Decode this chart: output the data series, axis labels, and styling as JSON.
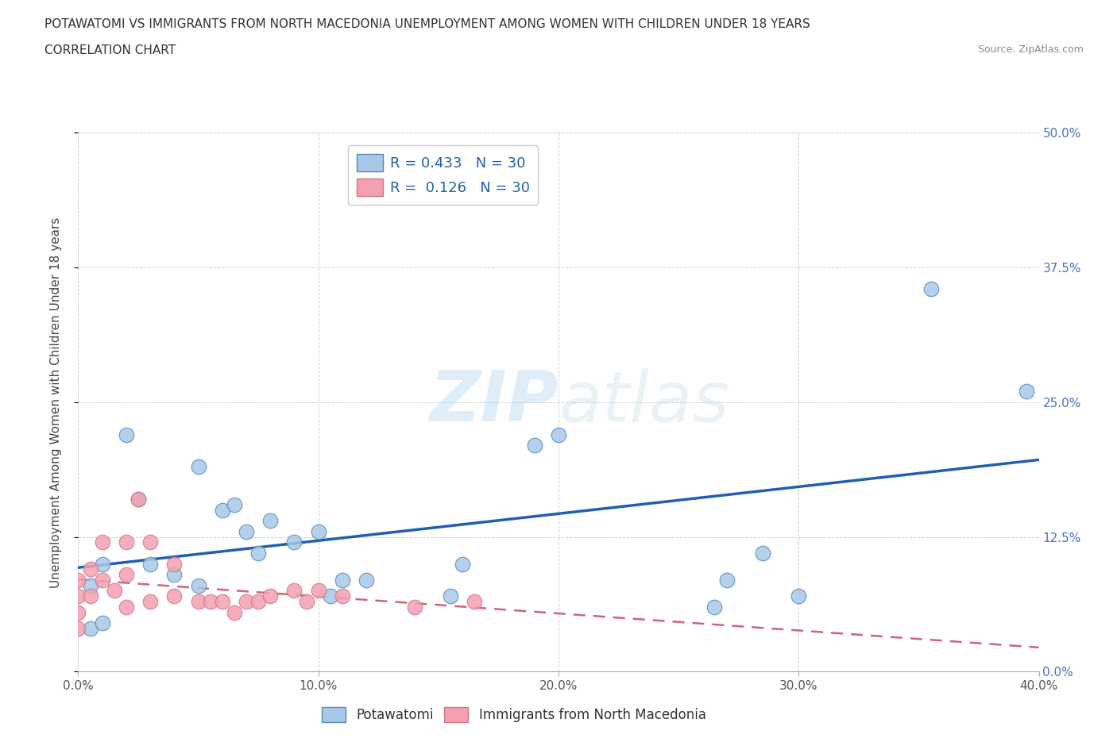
{
  "title_line1": "POTAWATOMI VS IMMIGRANTS FROM NORTH MACEDONIA UNEMPLOYMENT AMONG WOMEN WITH CHILDREN UNDER 18 YEARS",
  "title_line2": "CORRELATION CHART",
  "source": "Source: ZipAtlas.com",
  "ylabel": "Unemployment Among Women with Children Under 18 years",
  "xlim": [
    0.0,
    0.4
  ],
  "ylim": [
    0.0,
    0.5
  ],
  "xtick_vals": [
    0.0,
    0.1,
    0.2,
    0.3,
    0.4
  ],
  "xtick_labels": [
    "0.0%",
    "10.0%",
    "20.0%",
    "30.0%",
    "40.0%"
  ],
  "ytick_vals": [
    0.0,
    0.125,
    0.25,
    0.375,
    0.5
  ],
  "ytick_labels": [
    "0.0%",
    "12.5%",
    "25.0%",
    "37.5%",
    "50.0%"
  ],
  "watermark": "ZIPatlas",
  "blue_color": "#a8c8e8",
  "blue_edge_color": "#5588bb",
  "pink_color": "#f4a0b0",
  "pink_edge_color": "#cc7788",
  "blue_line_color": "#2060b0",
  "pink_line_color": "#cc6677",
  "legend_label1": "R = 0.433   N = 30",
  "legend_label2": "R =  0.126   N = 30",
  "potawatomi_x": [
    0.005,
    0.005,
    0.01,
    0.01,
    0.02,
    0.025,
    0.03,
    0.04,
    0.05,
    0.05,
    0.06,
    0.065,
    0.07,
    0.075,
    0.08,
    0.09,
    0.1,
    0.105,
    0.11,
    0.12,
    0.155,
    0.16,
    0.19,
    0.2,
    0.265,
    0.27,
    0.285,
    0.3,
    0.355,
    0.395
  ],
  "potawatomi_y": [
    0.08,
    0.04,
    0.1,
    0.045,
    0.22,
    0.16,
    0.1,
    0.09,
    0.19,
    0.08,
    0.15,
    0.155,
    0.13,
    0.11,
    0.14,
    0.12,
    0.13,
    0.07,
    0.085,
    0.085,
    0.07,
    0.1,
    0.21,
    0.22,
    0.06,
    0.085,
    0.11,
    0.07,
    0.355,
    0.26
  ],
  "macedonia_x": [
    0.0,
    0.0,
    0.0,
    0.0,
    0.005,
    0.005,
    0.01,
    0.01,
    0.015,
    0.02,
    0.02,
    0.02,
    0.025,
    0.03,
    0.03,
    0.04,
    0.04,
    0.05,
    0.055,
    0.06,
    0.065,
    0.07,
    0.075,
    0.08,
    0.09,
    0.095,
    0.1,
    0.11,
    0.14,
    0.165
  ],
  "macedonia_y": [
    0.04,
    0.055,
    0.07,
    0.085,
    0.07,
    0.095,
    0.085,
    0.12,
    0.075,
    0.06,
    0.09,
    0.12,
    0.16,
    0.065,
    0.12,
    0.07,
    0.1,
    0.065,
    0.065,
    0.065,
    0.055,
    0.065,
    0.065,
    0.07,
    0.075,
    0.065,
    0.075,
    0.07,
    0.06,
    0.065
  ]
}
